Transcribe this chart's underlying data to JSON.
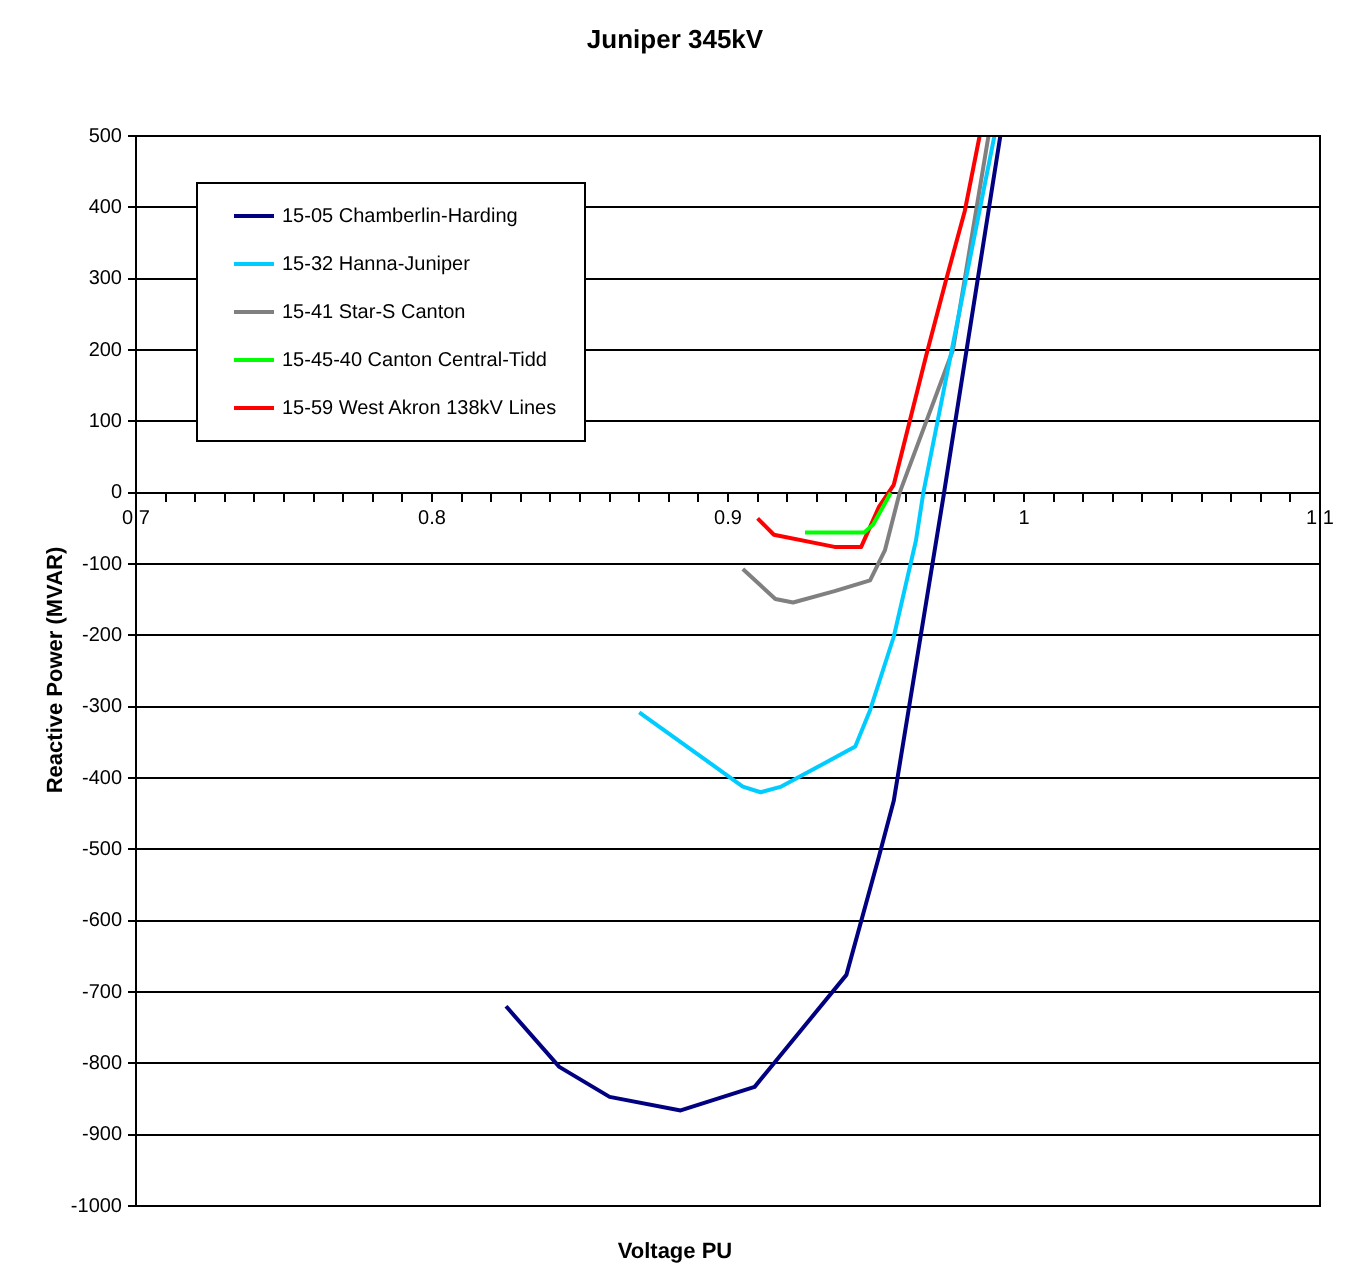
{
  "chart_data": {
    "type": "line",
    "title": "Juniper 345kV",
    "xlabel": "Voltage PU",
    "ylabel": "Reactive Power (MVAR)",
    "xlim": [
      0.7,
      1.1
    ],
    "xticks": [
      0.7,
      {
        "value": 0.71,
        "label": null
      },
      {
        "value": 0.72,
        "label": null
      },
      {
        "value": 0.73,
        "label": null
      },
      {
        "value": 0.74,
        "label": null
      },
      {
        "value": 0.75,
        "label": null
      },
      {
        "value": 0.76,
        "label": null
      },
      {
        "value": 0.77,
        "label": null
      },
      {
        "value": 0.78,
        "label": null
      },
      {
        "value": 0.79,
        "label": null
      },
      0.8,
      {
        "value": 0.81,
        "label": null
      },
      {
        "value": 0.82,
        "label": null
      },
      {
        "value": 0.83,
        "label": null
      },
      {
        "value": 0.84,
        "label": null
      },
      {
        "value": 0.85,
        "label": null
      },
      {
        "value": 0.86,
        "label": null
      },
      {
        "value": 0.87,
        "label": null
      },
      {
        "value": 0.88,
        "label": null
      },
      {
        "value": 0.89,
        "label": null
      },
      0.9,
      {
        "value": 0.91,
        "label": null
      },
      {
        "value": 0.92,
        "label": null
      },
      {
        "value": 0.93,
        "label": null
      },
      {
        "value": 0.94,
        "label": null
      },
      {
        "value": 0.95,
        "label": null
      },
      {
        "value": 0.96,
        "label": null
      },
      {
        "value": 0.97,
        "label": null
      },
      {
        "value": 0.98,
        "label": null
      },
      {
        "value": 0.99,
        "label": null
      },
      1,
      {
        "value": 1.01,
        "label": null
      },
      {
        "value": 1.02,
        "label": null
      },
      {
        "value": 1.03,
        "label": null
      },
      {
        "value": 1.04,
        "label": null
      },
      {
        "value": 1.05,
        "label": null
      },
      {
        "value": 1.06,
        "label": null
      },
      {
        "value": 1.07,
        "label": null
      },
      {
        "value": 1.08,
        "label": null
      },
      {
        "value": 1.09,
        "label": null
      },
      1.1
    ],
    "ylim": [
      -1000,
      500
    ],
    "yticks": [
      -1000,
      -900,
      -800,
      -700,
      -600,
      -500,
      -400,
      -300,
      -200,
      -100,
      0,
      100,
      200,
      300,
      400,
      500
    ],
    "grid": "y",
    "legend": "top left",
    "marker": "none",
    "line_style": "solid",
    "series": [
      {
        "name": "15-05 Chamberlin-Harding",
        "color": "#000080",
        "x": [
          0.825,
          0.843,
          0.86,
          0.884,
          0.909,
          0.94,
          0.951,
          0.956,
          0.973,
          0.992
        ],
        "values": [
          -720,
          -805,
          -847,
          -866,
          -833,
          -676,
          -510,
          -432,
          0,
          500
        ]
      },
      {
        "name": "15-32 Hanna-Juniper",
        "color": "#00ccff",
        "x": [
          0.87,
          0.905,
          0.911,
          0.918,
          0.943,
          0.948,
          0.956,
          0.9635,
          0.966,
          0.99
        ],
        "values": [
          -308,
          -412,
          -420,
          -412,
          -356,
          -305,
          -202,
          -67,
          0,
          500
        ]
      },
      {
        "name": "15-41 Star-S Canton",
        "color": "#808080",
        "x": [
          0.905,
          0.916,
          0.922,
          0.936,
          0.948,
          0.953,
          0.958,
          0.976,
          0.984,
          0.988
        ],
        "values": [
          -107,
          -149,
          -154,
          -138,
          -123,
          -81,
          0,
          200,
          400,
          500
        ]
      },
      {
        "name": "15-45-40 Canton Central-Tidd",
        "color": "#00ff00",
        "x": [
          0.926,
          0.946,
          0.949,
          0.955
        ],
        "values": [
          -56,
          -56,
          -45,
          0
        ]
      },
      {
        "name": "15-59  West Akron 138kV Lines",
        "color": "#ff0000",
        "x": [
          0.91,
          0.9155,
          0.936,
          0.945,
          0.951,
          0.956,
          0.967,
          0.9736,
          0.98,
          0.985
        ],
        "values": [
          -36,
          -59,
          -76,
          -76,
          -20,
          11,
          193,
          297,
          395,
          500
        ]
      }
    ]
  }
}
